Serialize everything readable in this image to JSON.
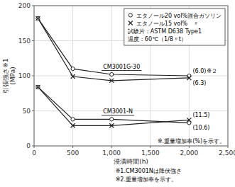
{
  "chart_data": {
    "type": "line",
    "xlabel": "浸漬時間(h)",
    "ylabel": "引張強さ※1\n(MPa)",
    "xlim": [
      0,
      2500
    ],
    "ylim": [
      0,
      200
    ],
    "xticks": [
      0,
      500,
      {
        "value": 1000,
        "label": "1,000"
      },
      {
        "value": 1500,
        "label": "1,500"
      },
      {
        "value": 2000,
        "label": "2,000"
      },
      {
        "value": 2500,
        "label": "2,500"
      }
    ],
    "yticks": [
      0,
      50,
      100,
      150,
      200
    ],
    "grid": true,
    "legend": "upper right",
    "color": "#222222",
    "x": [
      50,
      500,
      1000,
      2000
    ],
    "series": [
      {
        "name": "エタノール20 vol%混合ガソリン",
        "group": "CM3001G-30",
        "marker": "circle",
        "values": [
          182,
          110,
          102,
          100
        ]
      },
      {
        "name": "エタノール15 vol%　〃",
        "group": "CM3001G-30",
        "marker": "cross",
        "values": [
          182,
          99,
          93,
          97
        ]
      },
      {
        "name": "エタノール20 vol%混合ガソリン",
        "group": "CM3001-N",
        "marker": "circle",
        "values": [
          84,
          38,
          38,
          33
        ]
      },
      {
        "name": "エタノール15 vol%　〃",
        "group": "CM3001-N",
        "marker": "cross",
        "values": [
          84,
          29,
          29,
          37
        ]
      }
    ],
    "legend_notes": [
      "試験片：ASTM D638 Type1",
      "温度：60℃（1/8〃t）"
    ],
    "annotations": [
      {
        "text": "(6.0)",
        "series": 0
      },
      {
        "text": "(6.3)",
        "series": 1
      },
      {
        "text": "(11.5)",
        "series": 3
      },
      {
        "text": "(10.6)",
        "series": 2
      },
      {
        "text": "※２",
        "series": 0
      }
    ],
    "note": "※.重量増加率(%)を示す。",
    "footnotes": [
      "※1.CM3001Nは降伏強さ",
      "※2.重量増加率を示す。"
    ]
  }
}
